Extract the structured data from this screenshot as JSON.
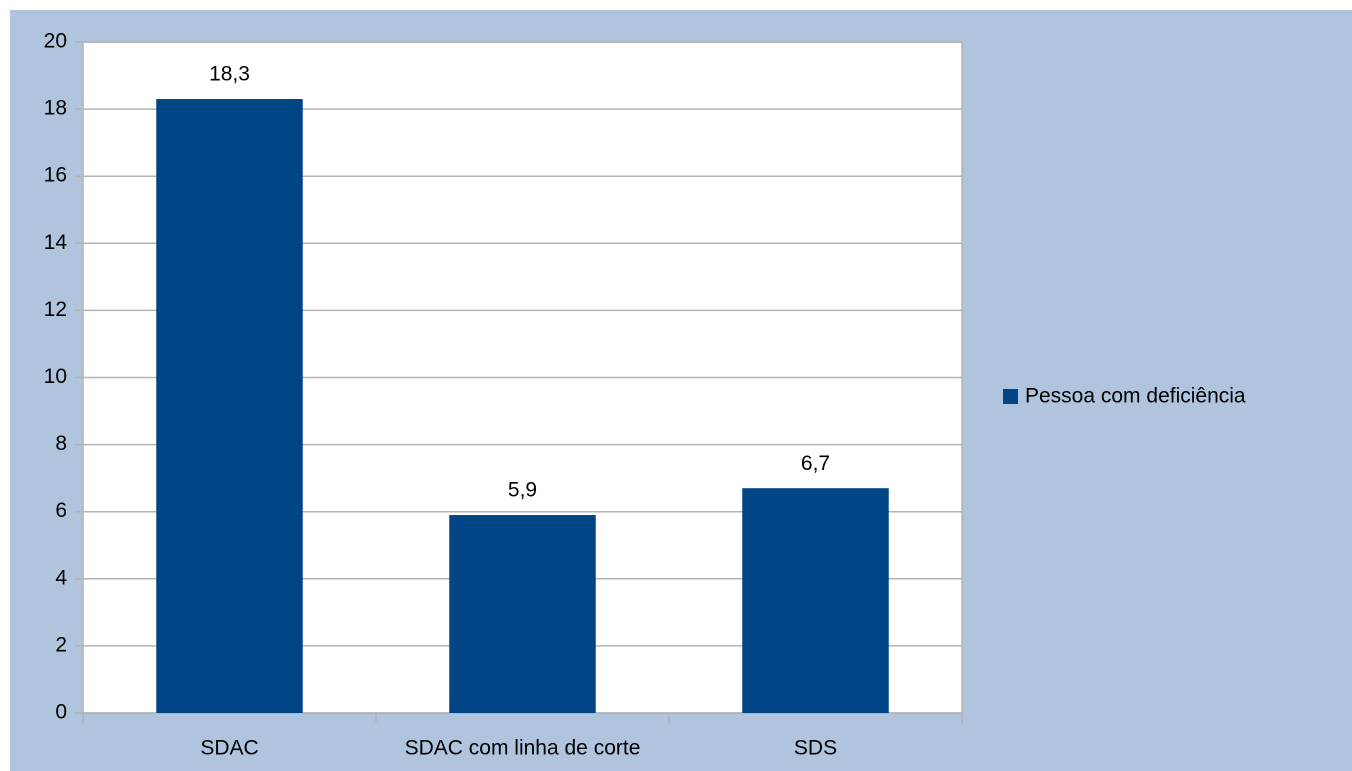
{
  "chart_data": {
    "type": "bar",
    "categories": [
      "SDAC",
      "SDAC com linha de corte",
      "SDS"
    ],
    "series": [
      {
        "name": "Pessoa com deficiência",
        "color": "#004586",
        "values": [
          18.3,
          5.9,
          6.7
        ],
        "value_labels": [
          "18,3",
          "5,9",
          "6,7"
        ]
      }
    ],
    "ylim": [
      0,
      20
    ],
    "yticks": [
      0,
      2,
      4,
      6,
      8,
      10,
      12,
      14,
      16,
      18,
      20
    ],
    "grid": true,
    "legend": "right"
  }
}
